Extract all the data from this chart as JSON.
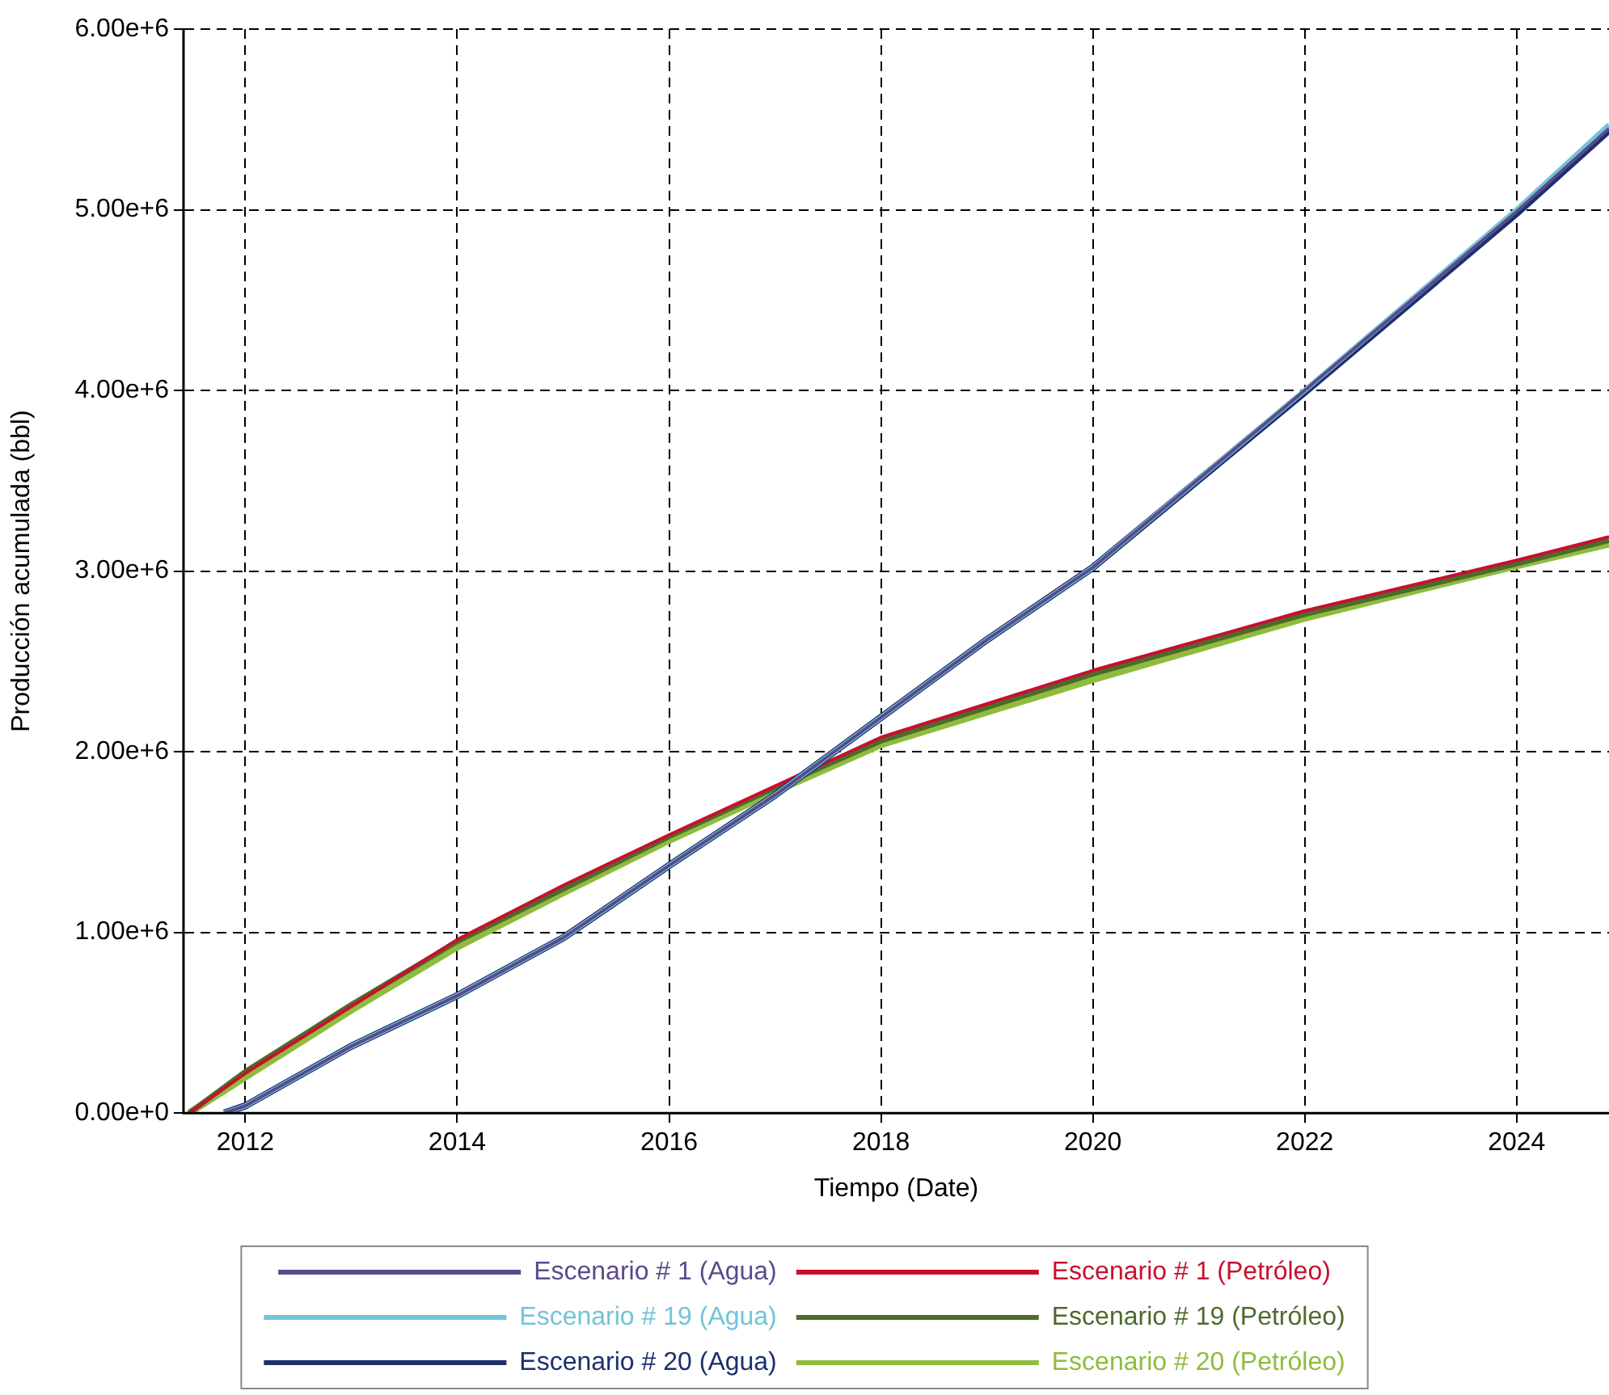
{
  "chart_data": {
    "type": "line",
    "xlabel": "Tiempo (Date)",
    "ylabel": "Producción acumulada (bbl)",
    "xlim": [
      "2011-06-01",
      "2024-11-15"
    ],
    "xticks": [
      "2012",
      "2014",
      "2016",
      "2018",
      "2020",
      "2022",
      "2024"
    ],
    "ylim": [
      0,
      6000000
    ],
    "yticks": [
      {
        "value": 0,
        "label": "0.00e+0"
      },
      {
        "value": 1000000,
        "label": "1.00e+6"
      },
      {
        "value": 2000000,
        "label": "2.00e+6"
      },
      {
        "value": 3000000,
        "label": "3.00e+6"
      },
      {
        "value": 4000000,
        "label": "4.00e+6"
      },
      {
        "value": 5000000,
        "label": "5.00e+6"
      },
      {
        "value": 6000000,
        "label": "6.00e+6"
      }
    ],
    "grid": true,
    "legend": "bottom",
    "marker": "none",
    "line_style": "solid",
    "series": [
      {
        "name": "Escenario # 1 (Agua)",
        "color": "#5b4a8a",
        "x": [
          "2011-10-20",
          "2012",
          "2013",
          "2014",
          "2015",
          "2016",
          "2017",
          "2018",
          "2019",
          "2020",
          "2022",
          "2024",
          "2024-11-15"
        ],
        "values": [
          0,
          40000,
          370000,
          650000,
          970000,
          1370000,
          1760000,
          2190000,
          2620000,
          3020000,
          4000000,
          4990000,
          5450000
        ]
      },
      {
        "name": "Escenario # 19 (Agua)",
        "color": "#72c4d8",
        "x": [
          "2011-10-20",
          "2012",
          "2013",
          "2014",
          "2015",
          "2016",
          "2017",
          "2018",
          "2019",
          "2020",
          "2022",
          "2024",
          "2024-11-15"
        ],
        "values": [
          0,
          40000,
          370000,
          650000,
          970000,
          1370000,
          1760000,
          2190000,
          2620000,
          3020000,
          4000000,
          5000000,
          5470000
        ]
      },
      {
        "name": "Escenario # 20 (Agua)",
        "color": "#1c2f6e",
        "x": [
          "2011-10-20",
          "2012",
          "2013",
          "2014",
          "2015",
          "2016",
          "2017",
          "2018",
          "2019",
          "2020",
          "2022",
          "2024",
          "2024-11-15"
        ],
        "values": [
          0,
          40000,
          370000,
          650000,
          970000,
          1370000,
          1760000,
          2190000,
          2620000,
          3020000,
          3990000,
          4980000,
          5440000
        ]
      },
      {
        "name": "Escenario # 1 (Petróleo)",
        "color": "#c8102e",
        "x": [
          "2011-06-20",
          "2012",
          "2013",
          "2014",
          "2015",
          "2016",
          "2017",
          "2018",
          "2020",
          "2022",
          "2024",
          "2024-11-15"
        ],
        "values": [
          0,
          220000,
          590000,
          960000,
          1260000,
          1540000,
          1810000,
          2080000,
          2450000,
          2780000,
          3060000,
          3190000
        ]
      },
      {
        "name": "Escenario # 19 (Petróleo)",
        "color": "#4d6b2c",
        "x": [
          "2011-06-20",
          "2012",
          "2013",
          "2014",
          "2015",
          "2016",
          "2017",
          "2018",
          "2020",
          "2022",
          "2024",
          "2024-11-15"
        ],
        "values": [
          0,
          230000,
          600000,
          950000,
          1240000,
          1530000,
          1800000,
          2060000,
          2430000,
          2760000,
          3040000,
          3170000
        ]
      },
      {
        "name": "Escenario # 20 (Petróleo)",
        "color": "#8fbc3e",
        "x": [
          "2011-06-20",
          "2012",
          "2013",
          "2014",
          "2015",
          "2016",
          "2017",
          "2018",
          "2020",
          "2022",
          "2024",
          "2024-11-15"
        ],
        "values": [
          0,
          200000,
          570000,
          920000,
          1220000,
          1510000,
          1780000,
          2040000,
          2400000,
          2740000,
          3030000,
          3150000
        ]
      }
    ]
  }
}
